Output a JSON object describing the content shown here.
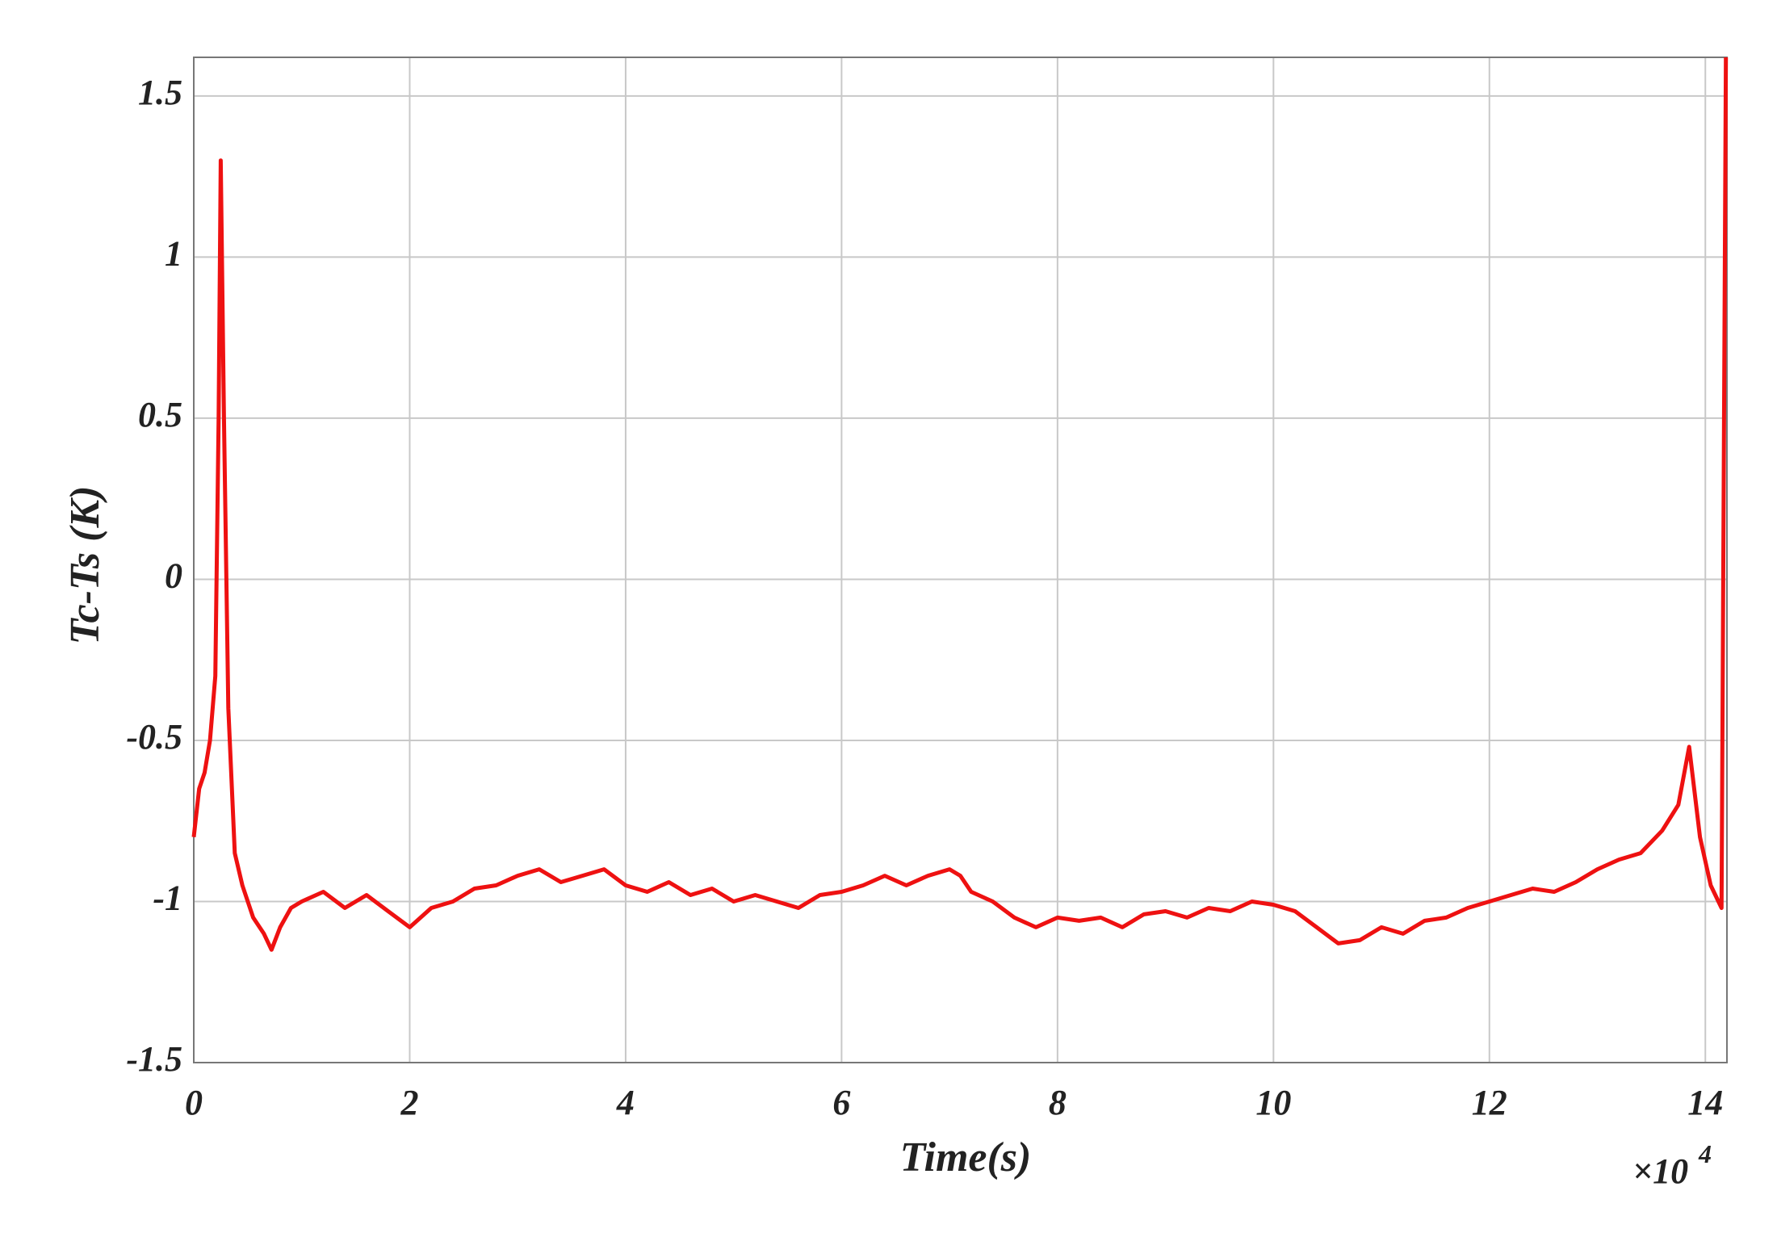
{
  "chart_data": {
    "type": "line",
    "x_label": "Time(s)",
    "y_label": "Tc-Ts (K)",
    "x_multiplier": {
      "base": "×10",
      "exponent": "4"
    },
    "xlim": [
      0,
      14.2
    ],
    "ylim": [
      -1.5,
      1.62
    ],
    "xticks": [
      0,
      2,
      4,
      6,
      8,
      10,
      12,
      14
    ],
    "yticks": [
      -1.5,
      -1,
      -0.5,
      0,
      0.5,
      1,
      1.5
    ],
    "grid": true,
    "x": [
      0,
      0.05,
      0.1,
      0.15,
      0.2,
      0.23,
      0.25,
      0.28,
      0.32,
      0.38,
      0.45,
      0.55,
      0.65,
      0.72,
      0.8,
      0.9,
      1.0,
      1.2,
      1.4,
      1.6,
      1.8,
      2.0,
      2.2,
      2.4,
      2.6,
      2.8,
      3.0,
      3.2,
      3.4,
      3.6,
      3.8,
      4.0,
      4.2,
      4.4,
      4.6,
      4.8,
      5.0,
      5.2,
      5.4,
      5.6,
      5.8,
      6.0,
      6.2,
      6.4,
      6.6,
      6.8,
      7.0,
      7.1,
      7.2,
      7.4,
      7.6,
      7.8,
      8.0,
      8.2,
      8.4,
      8.6,
      8.8,
      9.0,
      9.2,
      9.4,
      9.6,
      9.8,
      10.0,
      10.2,
      10.4,
      10.6,
      10.8,
      11.0,
      11.2,
      11.4,
      11.6,
      11.8,
      12.0,
      12.2,
      12.4,
      12.6,
      12.8,
      13.0,
      13.2,
      13.4,
      13.6,
      13.75,
      13.85,
      13.95,
      14.05,
      14.15,
      14.19
    ],
    "series": [
      {
        "name": "Tc-Ts",
        "color": "#ee1111",
        "values": [
          -0.8,
          -0.65,
          -0.6,
          -0.5,
          -0.3,
          0.5,
          1.3,
          0.5,
          -0.4,
          -0.85,
          -0.95,
          -1.05,
          -1.1,
          -1.15,
          -1.08,
          -1.02,
          -1.0,
          -0.97,
          -1.02,
          -0.98,
          -1.03,
          -1.08,
          -1.02,
          -1.0,
          -0.96,
          -0.95,
          -0.92,
          -0.9,
          -0.94,
          -0.92,
          -0.9,
          -0.95,
          -0.97,
          -0.94,
          -0.98,
          -0.96,
          -1.0,
          -0.98,
          -1.0,
          -1.02,
          -0.98,
          -0.97,
          -0.95,
          -0.92,
          -0.95,
          -0.92,
          -0.9,
          -0.92,
          -0.97,
          -1.0,
          -1.05,
          -1.08,
          -1.05,
          -1.06,
          -1.05,
          -1.08,
          -1.04,
          -1.03,
          -1.05,
          -1.02,
          -1.03,
          -1.0,
          -1.01,
          -1.03,
          -1.08,
          -1.13,
          -1.12,
          -1.08,
          -1.1,
          -1.06,
          -1.05,
          -1.02,
          -1.0,
          -0.98,
          -0.96,
          -0.97,
          -0.94,
          -0.9,
          -0.87,
          -0.85,
          -0.78,
          -0.7,
          -0.52,
          -0.8,
          -0.95,
          -1.02,
          1.62
        ]
      }
    ]
  }
}
